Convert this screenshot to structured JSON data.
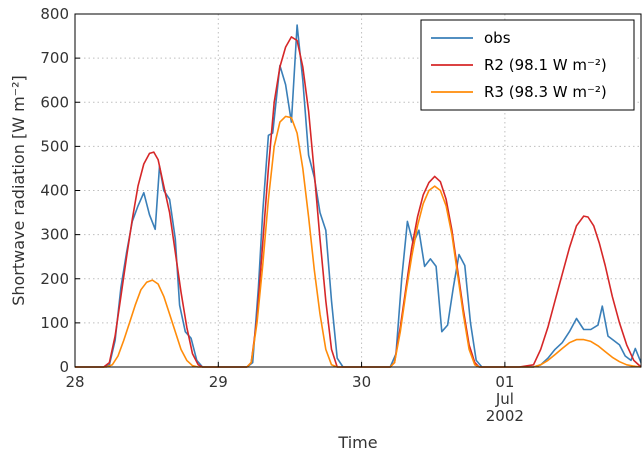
{
  "chart_data": {
    "type": "line",
    "title": "",
    "xlabel": "Time",
    "ylabel": "Shortwave radiation [W m⁻²]",
    "ylim": [
      0,
      800
    ],
    "xlim": [
      0,
      3.95
    ],
    "x_ticks": [
      {
        "x": 0,
        "lines": [
          "28"
        ]
      },
      {
        "x": 1,
        "lines": [
          "29"
        ]
      },
      {
        "x": 2,
        "lines": [
          "30"
        ]
      },
      {
        "x": 3,
        "lines": [
          "01",
          "Jul",
          "2002"
        ]
      }
    ],
    "y_ticks": [
      0,
      100,
      200,
      300,
      400,
      500,
      600,
      700,
      800
    ],
    "grid": true,
    "legend_position": "top-right",
    "series": [
      {
        "name": "obs",
        "color": "#3a7fb8",
        "points": [
          [
            0.0,
            0
          ],
          [
            0.2,
            0
          ],
          [
            0.24,
            5
          ],
          [
            0.28,
            60
          ],
          [
            0.32,
            180
          ],
          [
            0.36,
            260
          ],
          [
            0.4,
            330
          ],
          [
            0.44,
            365
          ],
          [
            0.48,
            395
          ],
          [
            0.52,
            345
          ],
          [
            0.56,
            312
          ],
          [
            0.59,
            455
          ],
          [
            0.62,
            400
          ],
          [
            0.66,
            380
          ],
          [
            0.7,
            290
          ],
          [
            0.73,
            140
          ],
          [
            0.77,
            80
          ],
          [
            0.81,
            65
          ],
          [
            0.85,
            15
          ],
          [
            0.89,
            0
          ],
          [
            1.2,
            0
          ],
          [
            1.24,
            10
          ],
          [
            1.28,
            180
          ],
          [
            1.31,
            350
          ],
          [
            1.35,
            525
          ],
          [
            1.38,
            530
          ],
          [
            1.43,
            683
          ],
          [
            1.47,
            640
          ],
          [
            1.51,
            555
          ],
          [
            1.55,
            775
          ],
          [
            1.59,
            650
          ],
          [
            1.63,
            480
          ],
          [
            1.67,
            430
          ],
          [
            1.71,
            350
          ],
          [
            1.75,
            310
          ],
          [
            1.79,
            150
          ],
          [
            1.83,
            20
          ],
          [
            1.87,
            0
          ],
          [
            2.2,
            0
          ],
          [
            2.24,
            30
          ],
          [
            2.28,
            200
          ],
          [
            2.32,
            330
          ],
          [
            2.36,
            280
          ],
          [
            2.4,
            310
          ],
          [
            2.44,
            228
          ],
          [
            2.48,
            245
          ],
          [
            2.52,
            228
          ],
          [
            2.56,
            80
          ],
          [
            2.6,
            95
          ],
          [
            2.64,
            180
          ],
          [
            2.68,
            255
          ],
          [
            2.72,
            230
          ],
          [
            2.76,
            100
          ],
          [
            2.8,
            15
          ],
          [
            2.84,
            0
          ],
          [
            3.2,
            0
          ],
          [
            3.25,
            5
          ],
          [
            3.3,
            20
          ],
          [
            3.35,
            40
          ],
          [
            3.4,
            55
          ],
          [
            3.45,
            80
          ],
          [
            3.5,
            110
          ],
          [
            3.55,
            85
          ],
          [
            3.6,
            85
          ],
          [
            3.65,
            95
          ],
          [
            3.68,
            138
          ],
          [
            3.72,
            70
          ],
          [
            3.76,
            60
          ],
          [
            3.8,
            50
          ],
          [
            3.84,
            25
          ],
          [
            3.88,
            15
          ],
          [
            3.91,
            42
          ],
          [
            3.95,
            10
          ]
        ]
      },
      {
        "name": "R2 (98.1 W m⁻²)",
        "color": "#d62728",
        "points": [
          [
            0.0,
            0
          ],
          [
            0.2,
            0
          ],
          [
            0.24,
            10
          ],
          [
            0.28,
            70
          ],
          [
            0.32,
            160
          ],
          [
            0.36,
            250
          ],
          [
            0.4,
            335
          ],
          [
            0.44,
            410
          ],
          [
            0.48,
            460
          ],
          [
            0.52,
            484
          ],
          [
            0.55,
            487
          ],
          [
            0.58,
            470
          ],
          [
            0.62,
            410
          ],
          [
            0.66,
            350
          ],
          [
            0.7,
            260
          ],
          [
            0.74,
            170
          ],
          [
            0.78,
            90
          ],
          [
            0.82,
            30
          ],
          [
            0.86,
            5
          ],
          [
            0.89,
            0
          ],
          [
            1.2,
            0
          ],
          [
            1.23,
            10
          ],
          [
            1.27,
            110
          ],
          [
            1.31,
            280
          ],
          [
            1.35,
            450
          ],
          [
            1.39,
            600
          ],
          [
            1.43,
            680
          ],
          [
            1.47,
            725
          ],
          [
            1.51,
            748
          ],
          [
            1.55,
            740
          ],
          [
            1.59,
            680
          ],
          [
            1.63,
            580
          ],
          [
            1.67,
            440
          ],
          [
            1.71,
            290
          ],
          [
            1.75,
            150
          ],
          [
            1.79,
            40
          ],
          [
            1.83,
            0
          ],
          [
            2.2,
            0
          ],
          [
            2.23,
            10
          ],
          [
            2.27,
            90
          ],
          [
            2.31,
            180
          ],
          [
            2.35,
            270
          ],
          [
            2.39,
            340
          ],
          [
            2.43,
            390
          ],
          [
            2.47,
            418
          ],
          [
            2.51,
            432
          ],
          [
            2.55,
            420
          ],
          [
            2.59,
            380
          ],
          [
            2.63,
            310
          ],
          [
            2.67,
            220
          ],
          [
            2.71,
            130
          ],
          [
            2.75,
            50
          ],
          [
            2.79,
            10
          ],
          [
            2.82,
            0
          ],
          [
            3.1,
            0
          ],
          [
            3.2,
            5
          ],
          [
            3.25,
            40
          ],
          [
            3.3,
            90
          ],
          [
            3.35,
            150
          ],
          [
            3.4,
            210
          ],
          [
            3.45,
            270
          ],
          [
            3.5,
            320
          ],
          [
            3.55,
            342
          ],
          [
            3.58,
            340
          ],
          [
            3.62,
            320
          ],
          [
            3.66,
            280
          ],
          [
            3.7,
            230
          ],
          [
            3.75,
            160
          ],
          [
            3.8,
            100
          ],
          [
            3.85,
            50
          ],
          [
            3.9,
            15
          ],
          [
            3.95,
            0
          ]
        ]
      },
      {
        "name": "R3 (98.3 W m⁻²)",
        "color": "#ff8c0a",
        "points": [
          [
            0.0,
            0
          ],
          [
            0.22,
            0
          ],
          [
            0.26,
            5
          ],
          [
            0.3,
            25
          ],
          [
            0.34,
            60
          ],
          [
            0.38,
            100
          ],
          [
            0.42,
            140
          ],
          [
            0.46,
            175
          ],
          [
            0.5,
            192
          ],
          [
            0.54,
            197
          ],
          [
            0.58,
            188
          ],
          [
            0.62,
            160
          ],
          [
            0.66,
            120
          ],
          [
            0.7,
            80
          ],
          [
            0.74,
            40
          ],
          [
            0.78,
            15
          ],
          [
            0.82,
            3
          ],
          [
            0.86,
            0
          ],
          [
            1.2,
            0
          ],
          [
            1.23,
            10
          ],
          [
            1.27,
            100
          ],
          [
            1.31,
            230
          ],
          [
            1.35,
            380
          ],
          [
            1.39,
            500
          ],
          [
            1.43,
            555
          ],
          [
            1.47,
            568
          ],
          [
            1.51,
            565
          ],
          [
            1.55,
            530
          ],
          [
            1.59,
            450
          ],
          [
            1.63,
            340
          ],
          [
            1.67,
            220
          ],
          [
            1.71,
            120
          ],
          [
            1.75,
            40
          ],
          [
            1.79,
            5
          ],
          [
            1.83,
            0
          ],
          [
            2.2,
            0
          ],
          [
            2.23,
            10
          ],
          [
            2.27,
            80
          ],
          [
            2.31,
            170
          ],
          [
            2.35,
            250
          ],
          [
            2.39,
            320
          ],
          [
            2.43,
            370
          ],
          [
            2.47,
            400
          ],
          [
            2.51,
            410
          ],
          [
            2.55,
            400
          ],
          [
            2.59,
            365
          ],
          [
            2.63,
            300
          ],
          [
            2.67,
            210
          ],
          [
            2.71,
            120
          ],
          [
            2.75,
            40
          ],
          [
            2.79,
            5
          ],
          [
            2.82,
            0
          ],
          [
            3.2,
            0
          ],
          [
            3.25,
            5
          ],
          [
            3.3,
            15
          ],
          [
            3.35,
            28
          ],
          [
            3.4,
            42
          ],
          [
            3.45,
            55
          ],
          [
            3.5,
            62
          ],
          [
            3.55,
            62
          ],
          [
            3.6,
            58
          ],
          [
            3.65,
            48
          ],
          [
            3.7,
            35
          ],
          [
            3.75,
            22
          ],
          [
            3.8,
            12
          ],
          [
            3.85,
            5
          ],
          [
            3.9,
            2
          ],
          [
            3.95,
            0
          ]
        ]
      }
    ]
  }
}
